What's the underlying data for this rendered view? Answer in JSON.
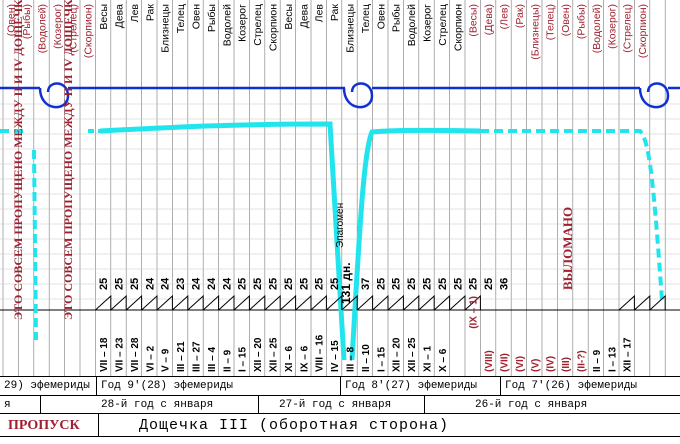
{
  "top_signs": [
    {
      "label": "(Овен)",
      "style": "paren"
    },
    {
      "label": "(Рыбы)",
      "style": "paren"
    },
    {
      "label": "(Водолей)",
      "style": "paren"
    },
    {
      "label": "(Козерог)",
      "style": "paren"
    },
    {
      "label": "(Стрелец)",
      "style": "paren"
    },
    {
      "label": "(Скорпион)",
      "style": "paren"
    },
    {
      "label": "Весы",
      "style": "normal"
    },
    {
      "label": "Дева",
      "style": "normal"
    },
    {
      "label": "Лев",
      "style": "normal"
    },
    {
      "label": "Рак",
      "style": "normal"
    },
    {
      "label": "Близнецы",
      "style": "normal"
    },
    {
      "label": "Телец",
      "style": "normal"
    },
    {
      "label": "Овен",
      "style": "normal"
    },
    {
      "label": "Рыбы",
      "style": "normal"
    },
    {
      "label": "Водолей",
      "style": "normal"
    },
    {
      "label": "Козерог",
      "style": "normal"
    },
    {
      "label": "Стрелец",
      "style": "normal"
    },
    {
      "label": "Скорпион",
      "style": "normal"
    },
    {
      "label": "Весы",
      "style": "normal"
    },
    {
      "label": "Дева",
      "style": "normal"
    },
    {
      "label": "Лев",
      "style": "normal"
    },
    {
      "label": "Рак",
      "style": "normal"
    },
    {
      "label": "Близнецы",
      "style": "normal"
    },
    {
      "label": "Телец",
      "style": "normal"
    },
    {
      "label": "Овен",
      "style": "normal"
    },
    {
      "label": "Рыбы",
      "style": "normal"
    },
    {
      "label": "Водолей",
      "style": "normal"
    },
    {
      "label": "Козерог",
      "style": "normal"
    },
    {
      "label": "Стрелец",
      "style": "normal"
    },
    {
      "label": "Скорпион",
      "style": "normal"
    },
    {
      "label": "(Весы)",
      "style": "paren"
    },
    {
      "label": "(Дева)",
      "style": "paren"
    },
    {
      "label": "(Лев)",
      "style": "paren"
    },
    {
      "label": "(Рак)",
      "style": "paren"
    },
    {
      "label": "(Близнецы)",
      "style": "paren"
    },
    {
      "label": "(Телец)",
      "style": "paren"
    },
    {
      "label": "(Овен)",
      "style": "paren"
    },
    {
      "label": "(Рыбы)",
      "style": "paren"
    },
    {
      "label": "(Водолей)",
      "style": "paren"
    },
    {
      "label": "(Козерог)",
      "style": "paren"
    },
    {
      "label": "(Стрелец)",
      "style": "paren"
    },
    {
      "label": "(Скорпион)",
      "style": "paren"
    }
  ],
  "left_notes": [
    "ЭТО СОВСЕМ ПРОПУЩЕНО МЕЖДУ II И IV ДОЩЕЧКАМИ",
    "ЭТО СОВСЕМ ПРОПУЩЕНО МЕЖДУ II И IV ДОЩЕЧКАМИ"
  ],
  "missing_label": "ВЫЛОМАНО",
  "epagomen_label": "Эпагомен",
  "days_label": "131 дн.",
  "day_counts": [
    "25",
    "25",
    "25",
    "24",
    "24",
    "23",
    "24",
    "24",
    "24",
    "25",
    "25",
    "25",
    "25",
    "25",
    "25",
    "25",
    "37",
    "25",
    "25",
    "25",
    "25",
    "25",
    "25",
    "25",
    "25",
    "36"
  ],
  "dates": [
    "VII – 18",
    "VII – 23",
    "VII – 28",
    "VI – 2",
    "V – 9",
    "III – 21",
    "III – 27",
    "III – 4",
    "II – 9",
    "I – 15",
    "XII – 20",
    "XII – 25",
    "XI – 6",
    "IX – 6",
    "VIII – 16",
    "IV – 15",
    "III – 8",
    "II – 10",
    "I – 15",
    "XII – 20",
    "XII – 25",
    "XI – 1",
    "X – 6",
    "(VIII)",
    "(VII)",
    "(VI)",
    "(V)",
    "(IV)",
    "(III)",
    "(II-?)",
    "II – 9",
    "I – 13",
    "XII – 17"
  ],
  "dates_paren_style": [
    false,
    false,
    false,
    false,
    false,
    false,
    false,
    false,
    false,
    false,
    false,
    false,
    false,
    false,
    false,
    false,
    false,
    false,
    false,
    false,
    false,
    false,
    false,
    true,
    true,
    true,
    true,
    true,
    true,
    true,
    false,
    false,
    false
  ],
  "top_extra_label": "(IX – 1)",
  "ephemeris_row": [
    "29)  эфемериды",
    "Год 9'(28)  эфемериды",
    "Год 8'(27)  эфемериды",
    "Год 7'(26)  эфемериды"
  ],
  "year_row": [
    "я",
    "28-й год с января",
    "27-й год с января",
    "26-й год с января"
  ],
  "title_row": {
    "gap_label": "ПРОПУСК",
    "title": "Дощечка III (оборотная сторона)"
  },
  "colors": {
    "blue_line": "#1030d0",
    "cyan_curve": "#22e4ec",
    "red_text": "#a02030",
    "grid": "#8c8c8c"
  }
}
